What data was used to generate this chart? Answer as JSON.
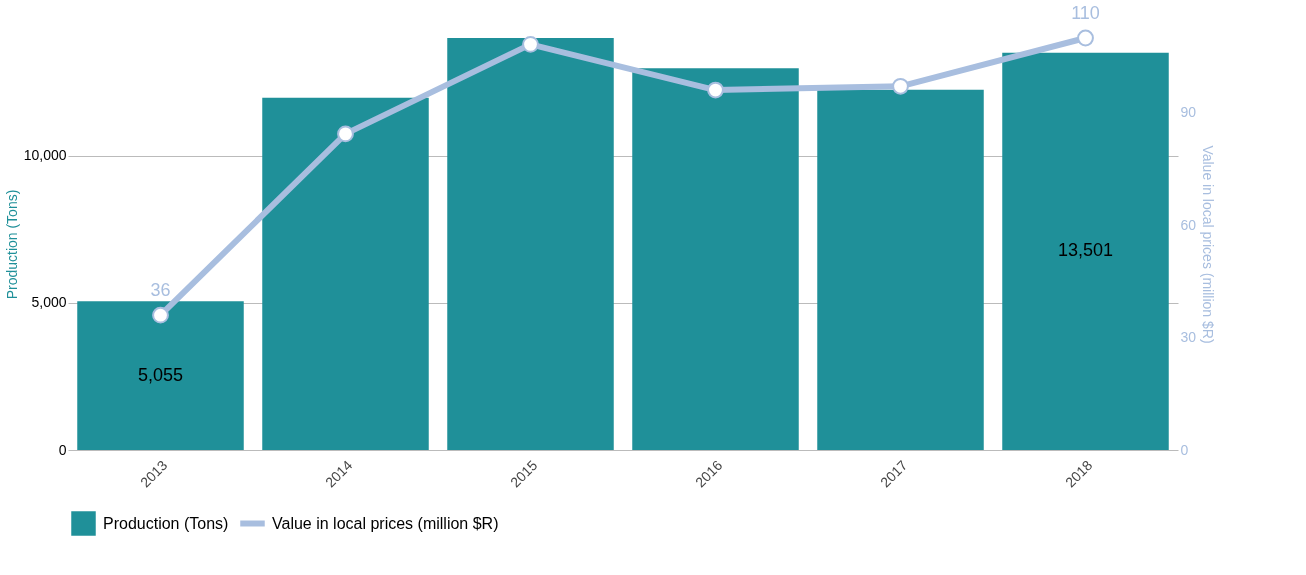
{
  "chart_data": {
    "type": "bar",
    "categories": [
      "2013",
      "2014",
      "2015",
      "2016",
      "2017",
      "2018"
    ],
    "ylabel": "Production (Tons)",
    "y2label": "Value in local prices (million $R)",
    "series": [
      {
        "name": "Production (Tons)",
        "color": "#1f9099",
        "values": [
          5055,
          11970,
          14000,
          12970,
          12240,
          13501
        ],
        "value_labels": [
          "5,055",
          null,
          null,
          null,
          null,
          "13,501"
        ]
      },
      {
        "name": "Value in local prices (million $R)",
        "type": "line",
        "axis": "y2",
        "color": "#a8bedf",
        "marker": "circle",
        "values": [
          36,
          84.4,
          108.3,
          96.1,
          97.1,
          110
        ],
        "value_labels": [
          "36",
          null,
          null,
          null,
          null,
          "110"
        ]
      }
    ],
    "ylim": [
      0,
      14000
    ],
    "yticks": [
      0,
      {
        "value": 5000,
        "label": "5,000"
      },
      {
        "value": 10000,
        "label": "10,000"
      }
    ],
    "y2lim": [
      0,
      110
    ],
    "y2ticks": [
      0,
      30,
      60,
      90
    ],
    "grid": "y",
    "legend": "bottom"
  }
}
